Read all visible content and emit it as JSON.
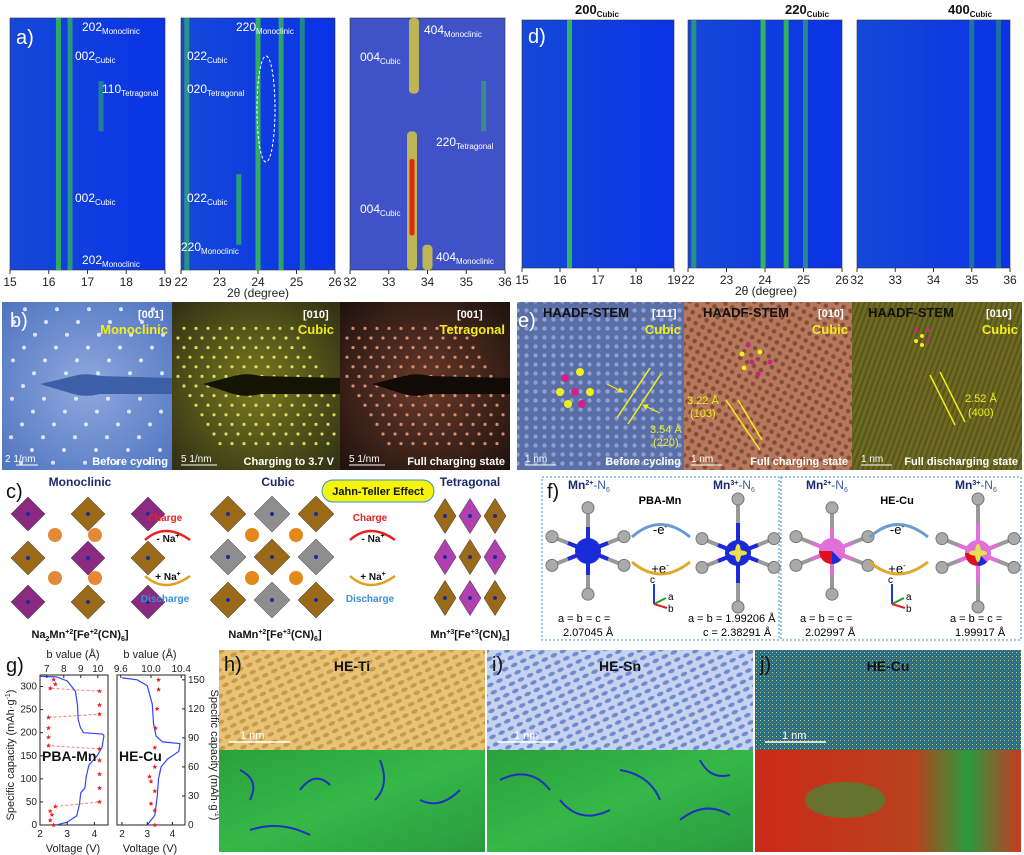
{
  "panel_labels": {
    "a": "a)",
    "b": "b)",
    "c": "c)",
    "d": "d)",
    "e": "e)",
    "f": "f)",
    "g": "g)",
    "h": "h)",
    "i": "i)",
    "j": "j)"
  },
  "panel_a": {
    "annotations": [
      {
        "hkl": "202",
        "phase": "Monoclinic"
      },
      {
        "hkl": "002",
        "phase": "Cubic"
      },
      {
        "hkl": "110",
        "phase": "Tetragonal"
      },
      {
        "hkl": "002",
        "phase": "Cubic"
      },
      {
        "hkl": "202",
        "phase": "Monoclinic"
      },
      {
        "hkl": "220",
        "phase": "Monoclinic"
      },
      {
        "hkl": "022",
        "phase": "Cubic"
      },
      {
        "hkl": "020",
        "phase": "Tetragonal"
      },
      {
        "hkl": "022",
        "phase": "Cubic"
      },
      {
        "hkl": "220",
        "phase": "Monoclinic"
      },
      {
        "hkl": "404",
        "phase": "Monoclinic"
      },
      {
        "hkl": "004",
        "phase": "Cubic"
      },
      {
        "hkl": "220",
        "phase": "Tetragonal"
      },
      {
        "hkl": "004",
        "phase": "Cubic"
      },
      {
        "hkl": "404",
        "phase": "Monoclinic"
      }
    ]
  },
  "panel_d": {
    "titles": [
      {
        "hkl": "200",
        "phase": "Cubic"
      },
      {
        "hkl": "220",
        "phase": "Cubic"
      },
      {
        "hkl": "400",
        "phase": "Cubic"
      }
    ]
  },
  "panel_b": {
    "images": [
      {
        "zone": "[001]",
        "phase": "Monoclinic",
        "scale": "2 1/nm",
        "state": "Before cycling"
      },
      {
        "zone": "[010]",
        "phase": "Cubic",
        "scale": "5 1/nm",
        "state": "Charging to 3.7 V"
      },
      {
        "zone": "[001]",
        "phase": "Tetragonal",
        "scale": "5 1/nm",
        "state": "Full charging state"
      }
    ]
  },
  "panel_e": {
    "technique": "HAADF-STEM",
    "images": [
      {
        "zone": "[111]",
        "phase": "Cubic",
        "scale": "1 nm",
        "state": "Before cycling",
        "d_spacing": "3.54 Å",
        "plane": "(220)"
      },
      {
        "zone": "[010]",
        "phase": "Cubic",
        "scale": "1 nm",
        "state": "Full charging state",
        "d_spacing": "3.22 Å",
        "plane": "(103)"
      },
      {
        "zone": "[010]",
        "phase": "Cubic",
        "scale": "1 nm",
        "state": "Full discharging state",
        "d_spacing": "2.52 Å",
        "plane": "(400)"
      }
    ]
  },
  "panel_c": {
    "phases": [
      "Monoclinic",
      "Cubic",
      "Tetragonal"
    ],
    "formulas": [
      {
        "a": "Na",
        "a_sub": "2",
        "b": "Mn",
        "b_sup": "+2",
        "c": "[Fe",
        "c_sup": "+2",
        "d": "(CN)",
        "d_sub": "6",
        "e": "]"
      },
      {
        "a": "Na",
        "a_sub": "",
        "b": "Mn",
        "b_sup": "+2",
        "c": "[Fe",
        "c_sup": "+3",
        "d": "(CN)",
        "d_sub": "6",
        "e": "]"
      },
      {
        "a": "",
        "a_sub": "",
        "b": "Mn",
        "b_sup": "+3",
        "c": "[Fe",
        "c_sup": "+3",
        "d": "(CN)",
        "d_sub": "6",
        "e": "]"
      }
    ],
    "charge": "Charge",
    "minus_na": "- Na",
    "plus_na": "+ Na",
    "na_sup": "+",
    "discharge": "Discharge",
    "badge": "Jahn-Teller Effect"
  },
  "panel_f": {
    "left": {
      "title": "PBA-Mn",
      "from": "Mn",
      "from_sup": "2+",
      "from_rest": "-N",
      "n_sub": "6",
      "to": "Mn",
      "to_sup": "3+",
      "to_rest": "-N",
      "from_params": [
        "a = b = c =",
        "2.07045 Å"
      ],
      "to_params": [
        "a = b = 1.99206 Å",
        "c = 2.38291 Å"
      ]
    },
    "right": {
      "title": "HE-Cu",
      "from": "Mn",
      "from_sup": "2+",
      "from_rest": "-N",
      "n_sub": "6",
      "to": "Mn",
      "to_sup": "3+",
      "to_rest": "-N",
      "from_params": [
        "a = b = c =",
        "2.02997 Å"
      ],
      "to_params": [
        "a = b = c =",
        "1.99917 Å"
      ]
    },
    "oxidation": "-e",
    "reduction": "+e",
    "e_sup": "-",
    "axes": {
      "a": "a",
      "b": "b",
      "c": "c"
    }
  },
  "panels_hij": [
    {
      "title": "HE-Ti",
      "scale": "1 nm"
    },
    {
      "title": "HE-Sn",
      "scale": "1 nm"
    },
    {
      "title": "HE-Cu",
      "scale": "1 nm"
    }
  ],
  "colors": {
    "heat_bg": "#0a2fe0",
    "peak": "#3cd23c",
    "accent_yellow": "#f2ee1a",
    "curve": "#3344ff",
    "bvalue": "#ee2222",
    "border_blue": "#3a8fd8"
  },
  "chart_data": [
    {
      "type": "heatmap",
      "panel": "a",
      "xlabel": "2θ (degree)",
      "subplots": [
        {
          "xlim": [
            15,
            19
          ],
          "ticks": [
            "15",
            "16",
            "17",
            "18",
            "19"
          ],
          "peaks": [
            {
              "x": 16.25,
              "i": 0.8,
              "from": 0,
              "to": 1
            },
            {
              "x": 16.55,
              "i": 0.55,
              "from": 0,
              "to": 1
            },
            {
              "x": 17.35,
              "i": 0.3,
              "from": 0.25,
              "to": 0.45
            }
          ]
        },
        {
          "xlim": [
            22,
            26
          ],
          "ticks": [
            "22",
            "23",
            "24",
            "25",
            "26"
          ],
          "peaks": [
            {
              "x": 22.15,
              "i": 0.5,
              "from": 0,
              "to": 1
            },
            {
              "x": 23.5,
              "i": 0.6,
              "from": 0.62,
              "to": 0.9
            },
            {
              "x": 24.0,
              "i": 0.85,
              "from": 0,
              "to": 1
            },
            {
              "x": 24.6,
              "i": 0.7,
              "from": 0,
              "to": 1
            },
            {
              "x": 25.15,
              "i": 0.4,
              "from": 0,
              "to": 1
            }
          ]
        },
        {
          "xlim": [
            32,
            36
          ],
          "ticks": [
            "32",
            "33",
            "34",
            "35",
            "36"
          ],
          "peaks": [
            {
              "x": 33.65,
              "i": 0.7,
              "from": 0,
              "to": 0.3,
              "hot": true
            },
            {
              "x": 33.6,
              "i": 1.0,
              "from": 0.45,
              "to": 1,
              "hot": true
            },
            {
              "x": 34.0,
              "i": 0.8,
              "from": 0.9,
              "to": 1,
              "hot": true
            },
            {
              "x": 35.45,
              "i": 0.3,
              "from": 0.25,
              "to": 0.45
            }
          ]
        }
      ]
    },
    {
      "type": "heatmap",
      "panel": "d",
      "xlabel": "2θ (degree)",
      "subplots": [
        {
          "xlim": [
            15,
            19
          ],
          "ticks": [
            "15",
            "16",
            "17",
            "18",
            "19"
          ],
          "peaks": [
            {
              "x": 16.25,
              "i": 0.9,
              "from": 0,
              "to": 1
            }
          ]
        },
        {
          "xlim": [
            22,
            26
          ],
          "ticks": [
            "22",
            "23",
            "24",
            "25",
            "26"
          ],
          "peaks": [
            {
              "x": 22.15,
              "i": 0.45,
              "from": 0,
              "to": 1
            },
            {
              "x": 23.95,
              "i": 0.9,
              "from": 0,
              "to": 1
            },
            {
              "x": 24.55,
              "i": 0.85,
              "from": 0,
              "to": 1
            },
            {
              "x": 25.05,
              "i": 0.45,
              "from": 0,
              "to": 1
            }
          ]
        },
        {
          "xlim": [
            32,
            36
          ],
          "ticks": [
            "32",
            "33",
            "34",
            "35",
            "36"
          ],
          "peaks": [
            {
              "x": 35.0,
              "i": 0.25,
              "from": 0,
              "to": 1
            },
            {
              "x": 35.7,
              "i": 0.2,
              "from": 0,
              "to": 1
            }
          ]
        }
      ]
    },
    {
      "type": "line",
      "panel": "g",
      "subplots": [
        {
          "name": "PBA-Mn",
          "xlabel": "Voltage (V)",
          "ylabel": "Specific capacity (mAh·g",
          "ylabel_sup": "-1",
          "ylabel_end": ")",
          "x2label": "b value (Å)",
          "xlim": [
            2,
            4.5
          ],
          "xticks": [
            "2",
            "3",
            "4"
          ],
          "ylim": [
            0,
            325
          ],
          "yticks": [
            "0",
            "50",
            "100",
            "150",
            "200",
            "250",
            "300"
          ],
          "x2lim": [
            6.6,
            10.6
          ],
          "x2ticks": [
            "7",
            "8",
            "9",
            "10"
          ],
          "voltage": [
            [
              2.0,
              322
            ],
            [
              2.6,
              321
            ],
            [
              3.0,
              312
            ],
            [
              3.3,
              290
            ],
            [
              3.38,
              260
            ],
            [
              3.4,
              230
            ],
            [
              3.48,
              212
            ],
            [
              3.6,
              200
            ],
            [
              4.3,
              197
            ],
            [
              4.35,
              193
            ],
            [
              4.28,
              168
            ],
            [
              4.1,
              150
            ],
            [
              3.8,
              130
            ],
            [
              3.7,
              105
            ],
            [
              3.65,
              80
            ],
            [
              3.5,
              70
            ],
            [
              3.45,
              45
            ],
            [
              3.35,
              20
            ],
            [
              3.0,
              6
            ],
            [
              2.6,
              0
            ]
          ],
          "bvalue": [
            [
              7.4,
              0
            ],
            [
              7.2,
              10
            ],
            [
              7.3,
              22
            ],
            [
              7.2,
              30
            ],
            [
              7.5,
              40
            ],
            [
              10.1,
              50
            ],
            [
              10.1,
              80
            ],
            [
              10.1,
              110
            ],
            [
              10.1,
              140
            ],
            [
              10.1,
              165
            ],
            [
              7.1,
              172
            ],
            [
              7.1,
              190
            ],
            [
              7.1,
              210
            ],
            [
              7.1,
              233
            ],
            [
              10.1,
              240
            ],
            [
              10.1,
              260
            ],
            [
              10.1,
              290
            ],
            [
              7.2,
              296
            ],
            [
              7.5,
              305
            ],
            [
              7.4,
              315
            ]
          ]
        },
        {
          "name": "HE-Cu",
          "xlabel": "Voltage (V)",
          "ylabel": "Specific capacity (mAh·g",
          "ylabel_sup": "-1",
          "ylabel_end": ")",
          "x2label": "b value (Å)",
          "xlim": [
            1.8,
            4.5
          ],
          "xticks": [
            "2",
            "3",
            "4"
          ],
          "ylim": [
            0,
            155
          ],
          "yticks": [
            "0",
            "30",
            "60",
            "90",
            "120",
            "150"
          ],
          "x2lim": [
            9.55,
            10.45
          ],
          "x2ticks": [
            "9.6",
            "10.0",
            "10.4"
          ],
          "voltage": [
            [
              2.0,
              152
            ],
            [
              2.6,
              150
            ],
            [
              3.0,
              144
            ],
            [
              3.2,
              125
            ],
            [
              3.25,
              105
            ],
            [
              3.35,
              92
            ],
            [
              3.6,
              86
            ],
            [
              4.3,
              84
            ],
            [
              4.25,
              76
            ],
            [
              3.8,
              68
            ],
            [
              3.55,
              60
            ],
            [
              3.45,
              48
            ],
            [
              3.4,
              30
            ],
            [
              3.3,
              10
            ],
            [
              3.0,
              0
            ]
          ],
          "bvalue": [
            [
              10.05,
              0
            ],
            [
              10.05,
              15
            ],
            [
              10.0,
              22
            ],
            [
              10.05,
              35
            ],
            [
              10.0,
              45
            ],
            [
              9.98,
              50
            ],
            [
              10.05,
              60
            ],
            [
              10.05,
              80
            ],
            [
              10.06,
              100
            ],
            [
              10.08,
              120
            ],
            [
              10.1,
              140
            ],
            [
              10.1,
              150
            ]
          ]
        }
      ]
    }
  ]
}
